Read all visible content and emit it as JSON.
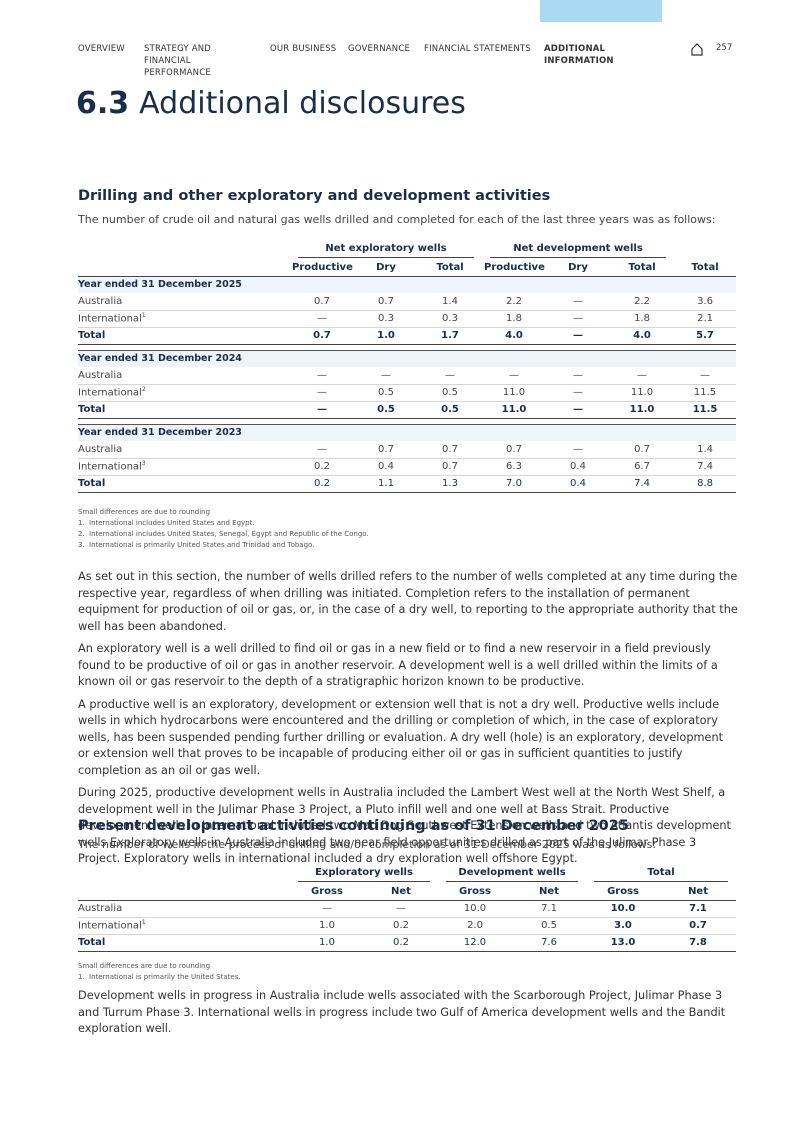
{
  "nav": {
    "items": [
      "OVERVIEW",
      "STRATEGY AND FINANCIAL PERFORMANCE",
      "OUR BUSINESS",
      "GOVERNANCE",
      "FINANCIAL STATEMENTS",
      "ADDITIONAL INFORMATION"
    ],
    "active": 5,
    "page": "257"
  },
  "title": {
    "number": "6.3",
    "text": "Additional disclosures"
  },
  "section1": {
    "heading": "Drilling and other exploratory and development activities",
    "intro": "The number of crude oil and natural gas wells drilled and completed for each of the last three years was as follows:",
    "table": {
      "group_headers": [
        "Net exploratory wells",
        "Net development wells"
      ],
      "columns": [
        "Productive",
        "Dry",
        "Total",
        "Productive",
        "Dry",
        "Total",
        "Total"
      ],
      "groups": [
        {
          "label": "Year ended 31 December 2025",
          "rows": [
            {
              "label": "Australia",
              "cells": [
                "0.7",
                "0.7",
                "1.4",
                "2.2",
                "—",
                "2.2",
                "3.6"
              ]
            },
            {
              "label": "International",
              "sup": "1",
              "cells": [
                "—",
                "0.3",
                "0.3",
                "1.8",
                "—",
                "1.8",
                "2.1"
              ]
            },
            {
              "label": "Total",
              "total": true,
              "cells": [
                "0.7",
                "1.0",
                "1.7",
                "4.0",
                "—",
                "4.0",
                "5.7"
              ]
            }
          ]
        },
        {
          "label": "Year ended 31 December 2024",
          "rows": [
            {
              "label": "Australia",
              "cells": [
                "—",
                "—",
                "—",
                "—",
                "—",
                "—",
                "—"
              ]
            },
            {
              "label": "International",
              "sup": "2",
              "cells": [
                "—",
                "0.5",
                "0.5",
                "11.0",
                "—",
                "11.0",
                "11.5"
              ]
            },
            {
              "label": "Total",
              "total": true,
              "cells": [
                "—",
                "0.5",
                "0.5",
                "11.0",
                "—",
                "11.0",
                "11.5"
              ]
            }
          ]
        },
        {
          "label": "Year ended 31 December 2023",
          "rows": [
            {
              "label": "Australia",
              "cells": [
                "—",
                "0.7",
                "0.7",
                "0.7",
                "—",
                "0.7",
                "1.4"
              ]
            },
            {
              "label": "International",
              "sup": "3",
              "cells": [
                "0.2",
                "0.4",
                "0.7",
                "6.3",
                "0.4",
                "6.7",
                "7.4"
              ]
            },
            {
              "label": "Total",
              "total": true,
              "light": true,
              "cells": [
                "0.2",
                "1.1",
                "1.3",
                "7.0",
                "0.4",
                "7.4",
                "8.8"
              ]
            }
          ]
        }
      ]
    },
    "footnotes": [
      {
        "text": "Small differences are due to rounding"
      },
      {
        "number": "1.",
        "text": "International includes United States and Egypt."
      },
      {
        "number": "2.",
        "text": "International includes United States, Senegal, Egypt and Republic of the Congo."
      },
      {
        "number": "3.",
        "text": "International is primarily United States and Trinidad and Tobago."
      }
    ],
    "paragraphs": [
      "As set out in this section, the number of wells drilled refers to the number of wells completed at any time during the respective year, regardless of when drilling was initiated. Completion refers to the installation of permanent equipment for production of oil or gas, or, in the case of a dry well, to reporting to the appropriate authority that the well has been abandoned.",
      "An exploratory well is a well drilled to find oil or gas in a new field or to find a new reservoir in a field previously found to be productive of oil or gas in another reservoir. A development well is a well drilled within the limits of a known oil or gas reservoir to the depth of a stratigraphic horizon known to be productive.",
      "A productive well is an exploratory, development or extension well that is not a dry well. Productive wells include wells in which hydrocarbons were encountered and the drilling or completion of which, in the case of exploratory wells, has been suspended pending further drilling or evaluation. A dry well (hole) is an exploratory, development or extension well that proves to be incapable of producing either oil or gas in sufficient quantities to justify completion as an oil or gas well.",
      "During 2025, productive development wells in Australia included the Lambert West well at the North West Shelf, a development well in the Julimar Phase 3 Project, a Pluto infill well and one well at Bass Strait. Productive development wells in International included two Mad Dog Southwest Extension wells and two Atlantis development wells Exploratory wells in Australia included two near field opportunities drilled as part of the Julimar Phase 3 Project. Exploratory wells in international included a dry exploration well offshore Egypt."
    ]
  },
  "section2": {
    "heading": "Present development activities continuing as of 31 December 2025",
    "intro": "The number of wells in the process of drilling and/or completion as of 31 December 2025 was as follows:",
    "table": {
      "group_headers": [
        "Exploratory wells",
        "Development wells",
        "Total"
      ],
      "columns": [
        "Gross",
        "Net",
        "Gross",
        "Net",
        "Gross",
        "Net"
      ],
      "rows": [
        {
          "label": "Australia",
          "cells": [
            "—",
            "—",
            "10.0",
            "7.1",
            "10.0",
            "7.1"
          ]
        },
        {
          "label": "International",
          "sup": "1",
          "cells": [
            "1.0",
            "0.2",
            "2.0",
            "0.5",
            "3.0",
            "0.7"
          ]
        },
        {
          "label": "Total",
          "total": true,
          "cells": [
            "1.0",
            "0.2",
            "12.0",
            "7.6",
            "13.0",
            "7.8"
          ]
        }
      ]
    },
    "footnotes": [
      {
        "text": "Small differences are due to rounding"
      },
      {
        "number": "1.",
        "text": "International is primarily the United States."
      }
    ],
    "paragraph": "Development wells in progress in Australia include wells associated with the Scarborough Project, Julimar Phase 3 and Turrum Phase 3. International wells in progress include two Gulf of America development wells and the Bandit exploration well."
  }
}
